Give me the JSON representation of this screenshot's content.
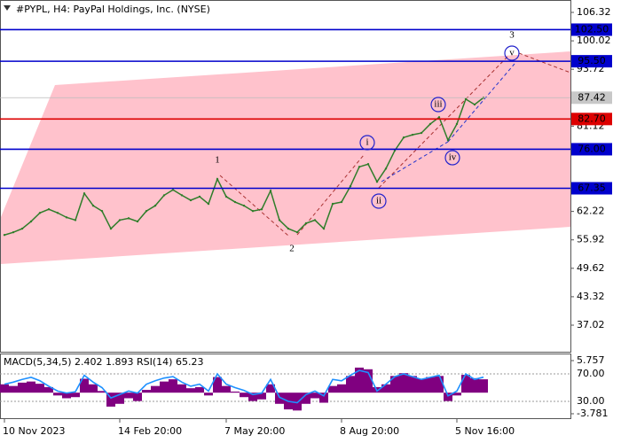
{
  "chart_data": [
    {
      "type": "line",
      "title": "#PYPL, H4:  PayPal Holdings, Inc. (NYSE)",
      "categories": [
        "10 Nov 2023",
        null,
        null,
        null,
        null,
        null,
        null,
        null,
        null,
        null,
        null,
        null,
        null,
        "14 Feb 20:00",
        null,
        null,
        null,
        null,
        null,
        null,
        null,
        null,
        null,
        null,
        null,
        "7 May 20:00",
        null,
        null,
        null,
        null,
        null,
        null,
        null,
        null,
        null,
        null,
        null,
        null,
        "8 Aug 20:00",
        null,
        null,
        null,
        null,
        null,
        null,
        null,
        null,
        null,
        null,
        null,
        null,
        "5 Nov 16:00",
        null,
        null,
        null
      ],
      "values": [
        57.0,
        57.6,
        58.4,
        60.0,
        61.9,
        62.7,
        61.9,
        60.9,
        60.3,
        66.2,
        63.5,
        62.3,
        58.4,
        60.3,
        60.7,
        60.0,
        62.3,
        63.5,
        65.8,
        67.0,
        65.8,
        64.7,
        65.5,
        63.9,
        69.4,
        65.5,
        64.3,
        63.5,
        62.3,
        62.7,
        66.8,
        60.3,
        58.4,
        57.6,
        59.6,
        60.3,
        58.4,
        63.9,
        64.3,
        67.8,
        72.1,
        72.7,
        68.8,
        71.7,
        75.7,
        78.6,
        79.2,
        79.6,
        81.6,
        83.1,
        78.0,
        81.6,
        87.1,
        85.9,
        87.42
      ],
      "color": "#2f7d2a",
      "ylim": [
        31.13,
        109.07
      ],
      "yticks": [
        37.02,
        43.32,
        49.62,
        55.92,
        62.22,
        81.12,
        93.72,
        100.02,
        106.32
      ],
      "last_price": 87.42,
      "levels": [
        {
          "value": 102.5,
          "label": "102.50",
          "color": "#0000cc"
        },
        {
          "value": 95.5,
          "label": "95.50",
          "color": "#0000cc"
        },
        {
          "value": 82.7,
          "label": "82.70",
          "color": "#dd0000"
        },
        {
          "value": 76,
          "label": "76.00",
          "color": "#0000cc"
        },
        {
          "value": 67.35,
          "label": "67.35",
          "color": "#0000cc"
        }
      ],
      "wave_labels": [
        "1",
        "2",
        "3"
      ],
      "sub_wave_labels": [
        "i",
        "ii",
        "iii",
        "iv",
        "v"
      ]
    },
    {
      "type": "bar",
      "title": "MACD(5,34,5) 2.402 1.893 RSI(14) 65.23",
      "series": [
        {
          "type": "bar",
          "color": "#800080",
          "values": [
            1.5,
            1.2,
            1.8,
            2.0,
            1.6,
            1.0,
            -0.5,
            -1.0,
            -0.8,
            2.5,
            1.5,
            0.3,
            -2.5,
            -2.0,
            -1.0,
            -1.5,
            0.5,
            1.2,
            2.0,
            2.4,
            1.5,
            0.8,
            1.0,
            -0.5,
            2.8,
            1.2,
            0.2,
            -0.8,
            -1.5,
            -1.2,
            1.5,
            -2.0,
            -3.0,
            -3.2,
            -2.0,
            -1.0,
            -1.8,
            1.2,
            1.5,
            3.0,
            4.5,
            4.2,
            1.0,
            1.5,
            3.0,
            3.5,
            3.0,
            2.5,
            2.8,
            3.0,
            -1.5,
            -0.5,
            3.2,
            2.6,
            2.402
          ]
        },
        {
          "type": "line",
          "color": "#1e90ff",
          "axis": "y2",
          "values": [
            55,
            58,
            62,
            65,
            60,
            52,
            45,
            42,
            44,
            68,
            58,
            50,
            35,
            40,
            45,
            42,
            55,
            60,
            64,
            66,
            58,
            52,
            55,
            45,
            70,
            55,
            50,
            46,
            40,
            42,
            62,
            36,
            30,
            28,
            40,
            45,
            38,
            62,
            60,
            68,
            75,
            72,
            45,
            55,
            66,
            70,
            66,
            62,
            65,
            68,
            38,
            45,
            70,
            62,
            65.23
          ]
        }
      ],
      "ylim": [
        -4.58,
        6.87
      ],
      "yticks": [
        -3.781,
        5.757
      ],
      "y2lim": [
        5.5,
        98.4
      ],
      "y2ticks": [
        {
          "value": 30,
          "label": "30.00"
        },
        {
          "value": 70,
          "label": "70.00"
        }
      ]
    }
  ]
}
